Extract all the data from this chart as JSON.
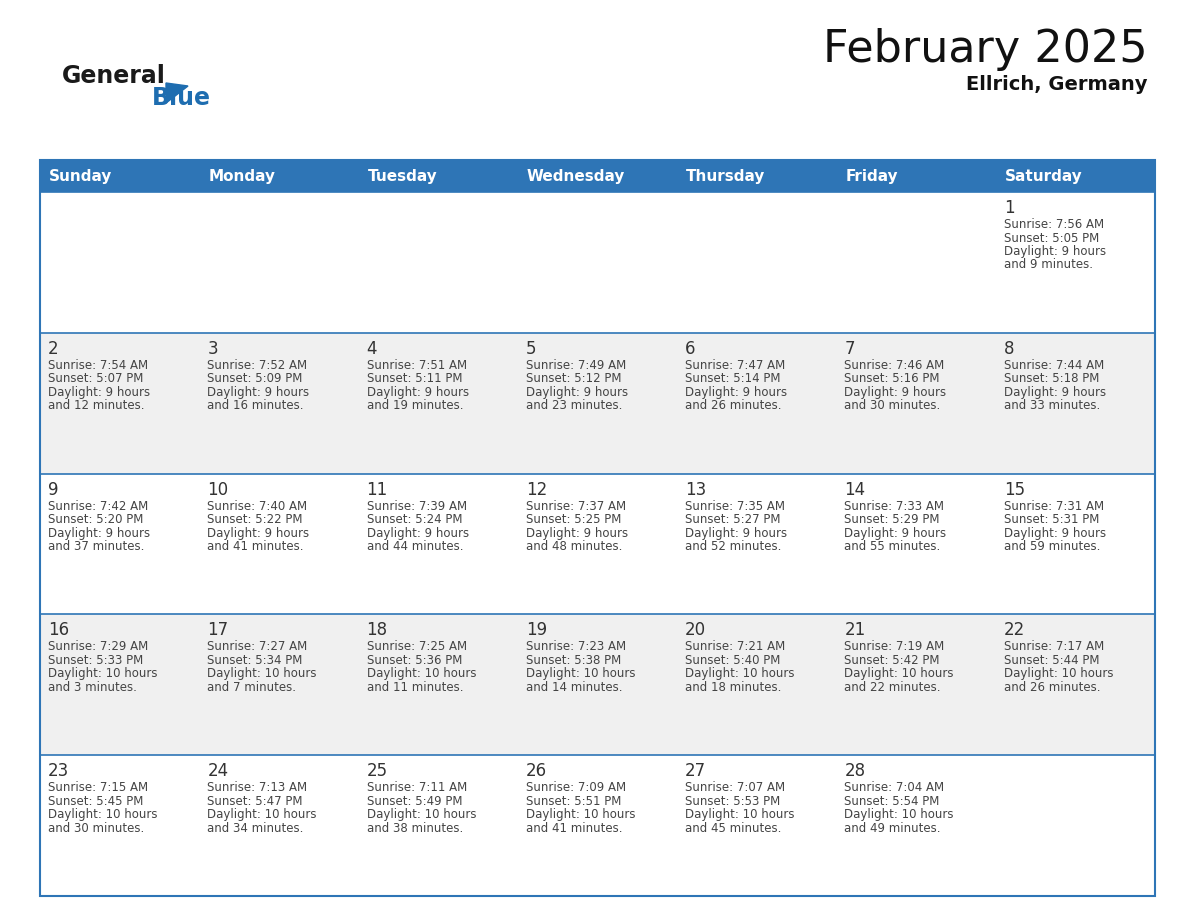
{
  "title": "February 2025",
  "subtitle": "Ellrich, Germany",
  "header_bg": "#2E75B6",
  "header_text_color": "#FFFFFF",
  "day_names": [
    "Sunday",
    "Monday",
    "Tuesday",
    "Wednesday",
    "Thursday",
    "Friday",
    "Saturday"
  ],
  "cell_bg_even": "#FFFFFF",
  "cell_bg_odd": "#F0F0F0",
  "separator_color": "#2E75B6",
  "date_text_color": "#333333",
  "info_text_color": "#444444",
  "calendar": [
    [
      null,
      null,
      null,
      null,
      null,
      null,
      {
        "day": 1,
        "sunrise": "7:56 AM",
        "sunset": "5:05 PM",
        "daylight_line1": "Daylight: 9 hours",
        "daylight_line2": "and 9 minutes."
      }
    ],
    [
      {
        "day": 2,
        "sunrise": "7:54 AM",
        "sunset": "5:07 PM",
        "daylight_line1": "Daylight: 9 hours",
        "daylight_line2": "and 12 minutes."
      },
      {
        "day": 3,
        "sunrise": "7:52 AM",
        "sunset": "5:09 PM",
        "daylight_line1": "Daylight: 9 hours",
        "daylight_line2": "and 16 minutes."
      },
      {
        "day": 4,
        "sunrise": "7:51 AM",
        "sunset": "5:11 PM",
        "daylight_line1": "Daylight: 9 hours",
        "daylight_line2": "and 19 minutes."
      },
      {
        "day": 5,
        "sunrise": "7:49 AM",
        "sunset": "5:12 PM",
        "daylight_line1": "Daylight: 9 hours",
        "daylight_line2": "and 23 minutes."
      },
      {
        "day": 6,
        "sunrise": "7:47 AM",
        "sunset": "5:14 PM",
        "daylight_line1": "Daylight: 9 hours",
        "daylight_line2": "and 26 minutes."
      },
      {
        "day": 7,
        "sunrise": "7:46 AM",
        "sunset": "5:16 PM",
        "daylight_line1": "Daylight: 9 hours",
        "daylight_line2": "and 30 minutes."
      },
      {
        "day": 8,
        "sunrise": "7:44 AM",
        "sunset": "5:18 PM",
        "daylight_line1": "Daylight: 9 hours",
        "daylight_line2": "and 33 minutes."
      }
    ],
    [
      {
        "day": 9,
        "sunrise": "7:42 AM",
        "sunset": "5:20 PM",
        "daylight_line1": "Daylight: 9 hours",
        "daylight_line2": "and 37 minutes."
      },
      {
        "day": 10,
        "sunrise": "7:40 AM",
        "sunset": "5:22 PM",
        "daylight_line1": "Daylight: 9 hours",
        "daylight_line2": "and 41 minutes."
      },
      {
        "day": 11,
        "sunrise": "7:39 AM",
        "sunset": "5:24 PM",
        "daylight_line1": "Daylight: 9 hours",
        "daylight_line2": "and 44 minutes."
      },
      {
        "day": 12,
        "sunrise": "7:37 AM",
        "sunset": "5:25 PM",
        "daylight_line1": "Daylight: 9 hours",
        "daylight_line2": "and 48 minutes."
      },
      {
        "day": 13,
        "sunrise": "7:35 AM",
        "sunset": "5:27 PM",
        "daylight_line1": "Daylight: 9 hours",
        "daylight_line2": "and 52 minutes."
      },
      {
        "day": 14,
        "sunrise": "7:33 AM",
        "sunset": "5:29 PM",
        "daylight_line1": "Daylight: 9 hours",
        "daylight_line2": "and 55 minutes."
      },
      {
        "day": 15,
        "sunrise": "7:31 AM",
        "sunset": "5:31 PM",
        "daylight_line1": "Daylight: 9 hours",
        "daylight_line2": "and 59 minutes."
      }
    ],
    [
      {
        "day": 16,
        "sunrise": "7:29 AM",
        "sunset": "5:33 PM",
        "daylight_line1": "Daylight: 10 hours",
        "daylight_line2": "and 3 minutes."
      },
      {
        "day": 17,
        "sunrise": "7:27 AM",
        "sunset": "5:34 PM",
        "daylight_line1": "Daylight: 10 hours",
        "daylight_line2": "and 7 minutes."
      },
      {
        "day": 18,
        "sunrise": "7:25 AM",
        "sunset": "5:36 PM",
        "daylight_line1": "Daylight: 10 hours",
        "daylight_line2": "and 11 minutes."
      },
      {
        "day": 19,
        "sunrise": "7:23 AM",
        "sunset": "5:38 PM",
        "daylight_line1": "Daylight: 10 hours",
        "daylight_line2": "and 14 minutes."
      },
      {
        "day": 20,
        "sunrise": "7:21 AM",
        "sunset": "5:40 PM",
        "daylight_line1": "Daylight: 10 hours",
        "daylight_line2": "and 18 minutes."
      },
      {
        "day": 21,
        "sunrise": "7:19 AM",
        "sunset": "5:42 PM",
        "daylight_line1": "Daylight: 10 hours",
        "daylight_line2": "and 22 minutes."
      },
      {
        "day": 22,
        "sunrise": "7:17 AM",
        "sunset": "5:44 PM",
        "daylight_line1": "Daylight: 10 hours",
        "daylight_line2": "and 26 minutes."
      }
    ],
    [
      {
        "day": 23,
        "sunrise": "7:15 AM",
        "sunset": "5:45 PM",
        "daylight_line1": "Daylight: 10 hours",
        "daylight_line2": "and 30 minutes."
      },
      {
        "day": 24,
        "sunrise": "7:13 AM",
        "sunset": "5:47 PM",
        "daylight_line1": "Daylight: 10 hours",
        "daylight_line2": "and 34 minutes."
      },
      {
        "day": 25,
        "sunrise": "7:11 AM",
        "sunset": "5:49 PM",
        "daylight_line1": "Daylight: 10 hours",
        "daylight_line2": "and 38 minutes."
      },
      {
        "day": 26,
        "sunrise": "7:09 AM",
        "sunset": "5:51 PM",
        "daylight_line1": "Daylight: 10 hours",
        "daylight_line2": "and 41 minutes."
      },
      {
        "day": 27,
        "sunrise": "7:07 AM",
        "sunset": "5:53 PM",
        "daylight_line1": "Daylight: 10 hours",
        "daylight_line2": "and 45 minutes."
      },
      {
        "day": 28,
        "sunrise": "7:04 AM",
        "sunset": "5:54 PM",
        "daylight_line1": "Daylight: 10 hours",
        "daylight_line2": "and 49 minutes."
      },
      null
    ]
  ],
  "logo_general_color": "#1a1a1a",
  "logo_blue_color": "#1e6db0",
  "logo_triangle_color": "#1e6db0",
  "title_fontsize": 32,
  "subtitle_fontsize": 14,
  "header_fontsize": 11,
  "day_num_fontsize": 12,
  "info_fontsize": 8.5
}
